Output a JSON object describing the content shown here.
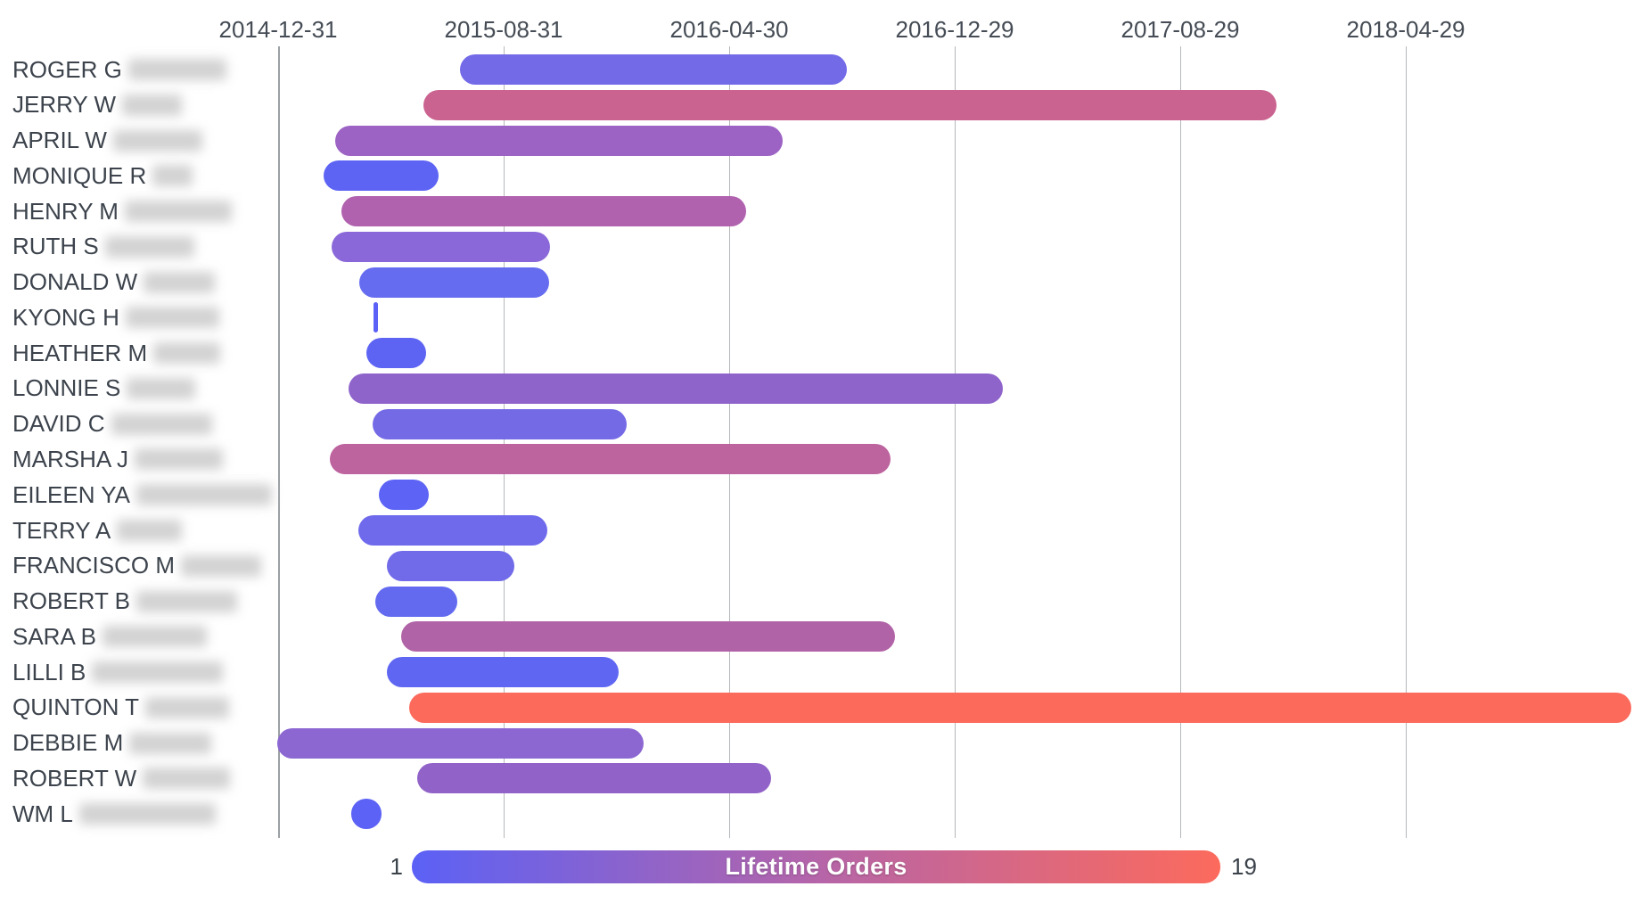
{
  "page": {
    "background": "#ffffff"
  },
  "chart_data": {
    "type": "gantt",
    "title": "",
    "x_axis": {
      "ticks": [
        "2014-12-31",
        "2015-08-31",
        "2016-04-30",
        "2016-12-29",
        "2017-08-29",
        "2018-04-29"
      ],
      "interval_days": 243,
      "grid": true
    },
    "y_axis_note": "customer names, surnames redacted/blurred",
    "legend": {
      "title": "Lifetime Orders",
      "min_label": "1",
      "max_label": "19",
      "gradient": [
        "#5b61f6",
        "#b565a9",
        "#fc6a5c"
      ],
      "position": "bottom"
    },
    "rows": [
      {
        "name": "ROGER G",
        "redacted_width": 110,
        "start": "2015-07-15",
        "end": "2016-09-04",
        "orders_estimate": 3,
        "color": "#736ae8"
      },
      {
        "name": "JERRY W",
        "redacted_width": 67,
        "start": "2015-06-06",
        "end": "2017-12-11",
        "orders_estimate": 14,
        "color": "#ca6390"
      },
      {
        "name": "APRIL W",
        "redacted_width": 100,
        "start": "2015-03-02",
        "end": "2016-06-27",
        "orders_estimate": 8,
        "color": "#9c63c5"
      },
      {
        "name": "MONIQUE R",
        "redacted_width": 45,
        "start": "2015-02-18",
        "end": "2015-06-22",
        "orders_estimate": 1,
        "color": "#5d64f4"
      },
      {
        "name": "HENRY M",
        "redacted_width": 120,
        "start": "2015-03-09",
        "end": "2016-05-18",
        "orders_estimate": 11,
        "color": "#b062ae"
      },
      {
        "name": "RUTH S",
        "redacted_width": 100,
        "start": "2015-02-27",
        "end": "2015-10-20",
        "orders_estimate": 5,
        "color": "#8a68d9"
      },
      {
        "name": "DONALD W",
        "redacted_width": 80,
        "start": "2015-03-28",
        "end": "2015-10-19",
        "orders_estimate": 2,
        "color": "#666cef"
      },
      {
        "name": "KYONG H",
        "redacted_width": 105,
        "start": "2015-04-13",
        "end": "2015-04-15",
        "orders_estimate": 1,
        "color": "#5b61f6"
      },
      {
        "name": "HEATHER M",
        "redacted_width": 75,
        "start": "2015-04-05",
        "end": "2015-06-08",
        "orders_estimate": 1,
        "color": "#5d64f4"
      },
      {
        "name": "LONNIE S",
        "redacted_width": 77,
        "start": "2015-03-17",
        "end": "2017-02-19",
        "orders_estimate": 7,
        "color": "#8e64cb"
      },
      {
        "name": "DAVID C",
        "redacted_width": 113,
        "start": "2015-04-12",
        "end": "2016-01-11",
        "orders_estimate": 3,
        "color": "#756ae6"
      },
      {
        "name": "MARSHA J",
        "redacted_width": 99,
        "start": "2015-02-25",
        "end": "2016-10-21",
        "orders_estimate": 12,
        "color": "#bd639e"
      },
      {
        "name": "EILEEN YA",
        "redacted_width": 152,
        "start": "2015-04-19",
        "end": "2015-06-11",
        "orders_estimate": 1,
        "color": "#5c63f5"
      },
      {
        "name": "TERRY A",
        "redacted_width": 73,
        "start": "2015-03-27",
        "end": "2015-10-17",
        "orders_estimate": 3,
        "color": "#6f6aec"
      },
      {
        "name": "FRANCISCO M",
        "redacted_width": 90,
        "start": "2015-04-27",
        "end": "2015-09-12",
        "orders_estimate": 3,
        "color": "#716ae9"
      },
      {
        "name": "ROBERT B",
        "redacted_width": 113,
        "start": "2015-04-15",
        "end": "2015-07-12",
        "orders_estimate": 2,
        "color": "#636af0"
      },
      {
        "name": "SARA B",
        "redacted_width": 117,
        "start": "2015-05-13",
        "end": "2016-10-26",
        "orders_estimate": 11,
        "color": "#b163a7"
      },
      {
        "name": "LILLI B",
        "redacted_width": 147,
        "start": "2015-04-27",
        "end": "2016-01-02",
        "orders_estimate": 2,
        "color": "#5f67f2"
      },
      {
        "name": "QUINTON T",
        "redacted_width": 94,
        "start": "2015-05-21",
        "end": "2018-12-28",
        "orders_estimate": 19,
        "color": "#fc6a5c"
      },
      {
        "name": "DEBBIE M",
        "redacted_width": 92,
        "start": "2014-12-30",
        "end": "2016-01-29",
        "orders_estimate": 6,
        "color": "#8c67d2"
      },
      {
        "name": "ROBERT W",
        "redacted_width": 98,
        "start": "2015-05-30",
        "end": "2016-06-14",
        "orders_estimate": 7,
        "color": "#9163c8"
      },
      {
        "name": "WM L",
        "redacted_width": 153,
        "start": "2015-03-20",
        "end": "2015-04-21",
        "orders_estimate": 1,
        "color": "#5c62f5"
      }
    ]
  }
}
